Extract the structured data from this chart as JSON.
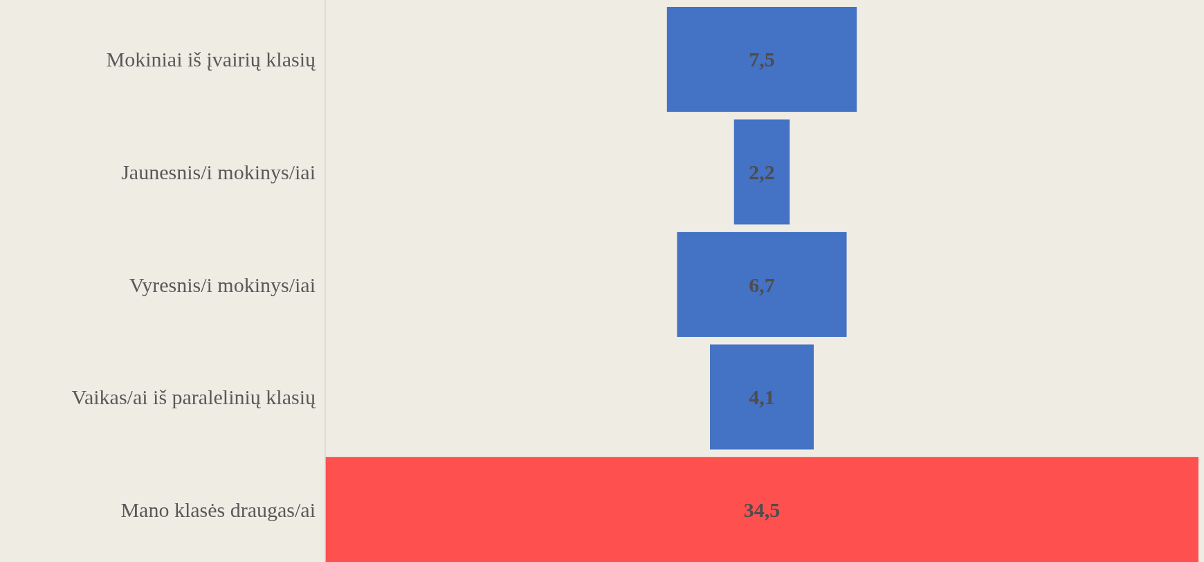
{
  "chart_data": {
    "type": "other",
    "categories": [
      "Mokiniai iš įvairių klasių",
      "Jaunesnis/i mokinys/iai",
      "Vyresnis/i mokinys/iai",
      "Vaikas/ai iš paralelinių klasių",
      "Mano klasės draugas/ai"
    ],
    "values": [
      7.5,
      2.2,
      6.7,
      4.1,
      34.5
    ],
    "colors": [
      "#4472c4",
      "#4472c4",
      "#4472c4",
      "#4472c4",
      "#ff5050"
    ],
    "value_labels": [
      "7,5",
      "2,2",
      "6,7",
      "4,1",
      "34,5"
    ]
  }
}
